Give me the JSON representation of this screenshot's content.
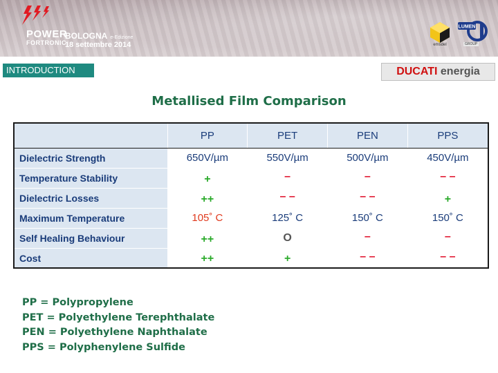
{
  "header": {
    "logo_line1": "POWER",
    "logo_line2": "FORTRONIC",
    "city": "BOLOGNA",
    "city_sub": "e-Edizione",
    "date": "18 settembre 2014",
    "sponsor_a": "emsdel",
    "sponsor_b_logo": "LUMEN",
    "sponsor_b_sub": "GROUP"
  },
  "section_tag": "INTRODUCTION",
  "company": {
    "brand": "DUCATI",
    "rest": "energia"
  },
  "title": "Metallised Film Comparison",
  "table": {
    "columns": [
      "PP",
      "PET",
      "PEN",
      "PPS"
    ],
    "rows": [
      {
        "label": "Dielectric Strength",
        "cells": [
          "650V/µm",
          "550V/µm",
          "500V/µm",
          "450V/µm"
        ]
      },
      {
        "label": "Temperature Stability",
        "cells": [
          "+",
          "–",
          "–",
          "– –"
        ]
      },
      {
        "label": "Dielectric Losses",
        "cells": [
          "++",
          "– –",
          "– –",
          "+"
        ]
      },
      {
        "label": "Maximum Temperature",
        "cells": [
          "105˚ C",
          "125˚ C",
          "150˚ C",
          "150˚ C"
        ]
      },
      {
        "label": "Self Healing Behaviour",
        "cells": [
          "++",
          "O",
          "–",
          "–"
        ]
      },
      {
        "label": "Cost",
        "cells": [
          "++",
          "+",
          "– –",
          "– –"
        ]
      }
    ]
  },
  "abbreviations": [
    "PP = Polypropylene",
    "PET = Polyethylene Terephthalate",
    "PEN = Polyethylene Naphthalate",
    "PPS = Polyphenylene Sulfide"
  ],
  "colors": {
    "accent_teal": "#1f8a80",
    "title_green": "#1f6e48",
    "positive": "#2aaa2a",
    "negative": "#e0102a",
    "header_fill": "#dce6f1"
  }
}
